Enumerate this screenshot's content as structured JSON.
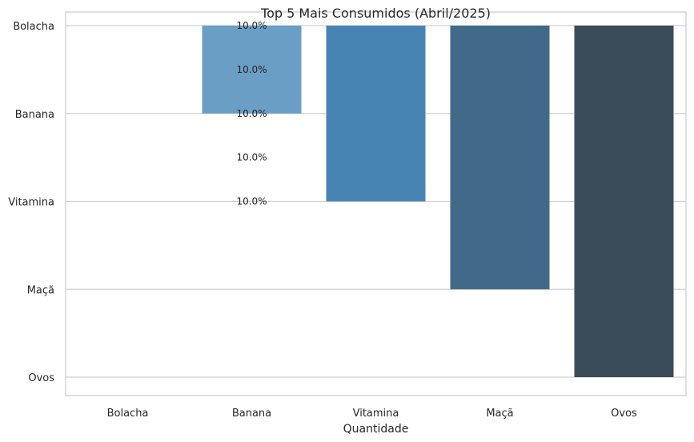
{
  "chart_data": {
    "type": "bar",
    "title": "Top 5 Mais Consumidos (Abril/2025)",
    "xlabel": "Quantidade",
    "ylabel": "",
    "categories": [
      "Bolacha",
      "Banana",
      "Vitamina",
      "Maçã",
      "Ovos"
    ],
    "x_tick_labels": [
      "Bolacha",
      "Banana",
      "Vitamina",
      "Maçã",
      "Ovos"
    ],
    "y_tick_labels": [
      "Bolacha",
      "Banana",
      "Vitamina",
      "Maçã",
      "Ovos"
    ],
    "values": [
      0,
      1,
      2,
      3,
      4
    ],
    "data_labels": [
      "10.0%",
      "10.0%",
      "10.0%",
      "10.0%",
      "10.0%"
    ],
    "colors": [
      "#7ba7cc",
      "#6a9ec5",
      "#4884b3",
      "#416a89",
      "#3a4c5a"
    ],
    "grid": true,
    "legend": "none"
  }
}
